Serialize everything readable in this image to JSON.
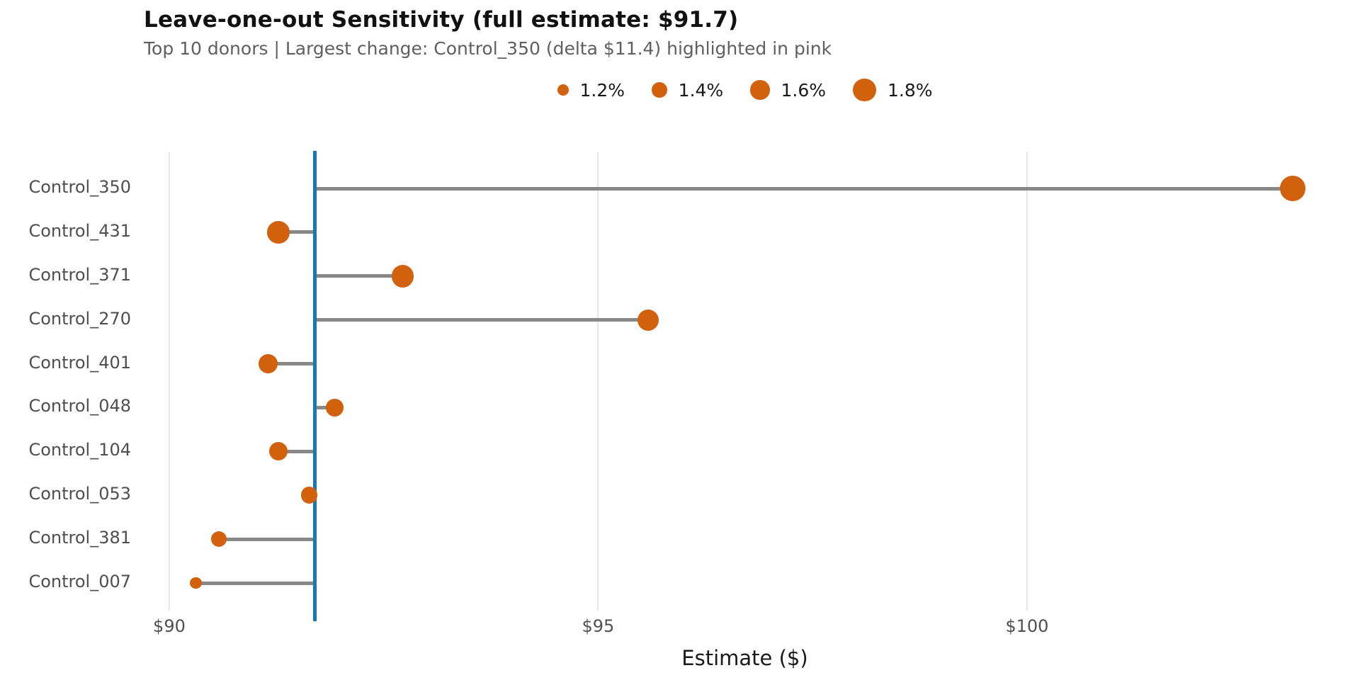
{
  "title": "Leave-one-out Sensitivity (full estimate: $91.7)",
  "subtitle": "Top 10 donors | Largest change: Control_350 (delta $11.4) highlighted in pink",
  "legend": {
    "items": [
      {
        "label": "1.2%",
        "pct": 1.2
      },
      {
        "label": "1.4%",
        "pct": 1.4
      },
      {
        "label": "1.6%",
        "pct": 1.6
      },
      {
        "label": "1.8%",
        "pct": 1.8
      }
    ]
  },
  "colors": {
    "dot_orange": "#D2610E",
    "reference_blue": "#1878b4",
    "stem_gray": "#888888",
    "grid_gray": "#e7e7e7",
    "title_text": "#111111",
    "subtitle_text": "#5f5f5f",
    "axis_text": "#4f4f4f"
  },
  "chart_data": {
    "type": "scatter",
    "subtype": "lollipop-dot-plot",
    "title": "Leave-one-out Sensitivity (full estimate: $91.7)",
    "subtitle": "Top 10 donors | Largest change: Control_350 (delta $11.4) highlighted in pink",
    "xlabel": "Estimate ($)",
    "ylabel": "",
    "xlim": [
      89.67,
      103.75
    ],
    "x_ticks": [
      {
        "value": 90,
        "label": "$90"
      },
      {
        "value": 95,
        "label": "$95"
      },
      {
        "value": 100,
        "label": "$100"
      }
    ],
    "grid": "vertical-only",
    "reference_line": {
      "value": 91.7,
      "orientation": "vertical",
      "meaning": "full estimate"
    },
    "legend_position": "top-center",
    "size_legend_pcts": [
      1.2,
      1.4,
      1.6,
      1.8
    ],
    "categories": [
      "Control_350",
      "Control_431",
      "Control_371",
      "Control_270",
      "Control_401",
      "Control_048",
      "Control_104",
      "Control_053",
      "Control_381",
      "Control_007"
    ],
    "points": [
      {
        "label": "Control_350",
        "estimate": 103.1,
        "weight_pct": 1.9
      },
      {
        "label": "Control_431",
        "estimate": 91.27,
        "weight_pct": 1.75
      },
      {
        "label": "Control_371",
        "estimate": 92.72,
        "weight_pct": 1.75
      },
      {
        "label": "Control_270",
        "estimate": 95.58,
        "weight_pct": 1.7
      },
      {
        "label": "Control_401",
        "estimate": 91.15,
        "weight_pct": 1.58
      },
      {
        "label": "Control_048",
        "estimate": 91.93,
        "weight_pct": 1.5
      },
      {
        "label": "Control_104",
        "estimate": 91.27,
        "weight_pct": 1.55
      },
      {
        "label": "Control_053",
        "estimate": 91.63,
        "weight_pct": 1.47
      },
      {
        "label": "Control_381",
        "estimate": 90.58,
        "weight_pct": 1.43
      },
      {
        "label": "Control_007",
        "estimate": 90.31,
        "weight_pct": 1.22
      }
    ]
  }
}
